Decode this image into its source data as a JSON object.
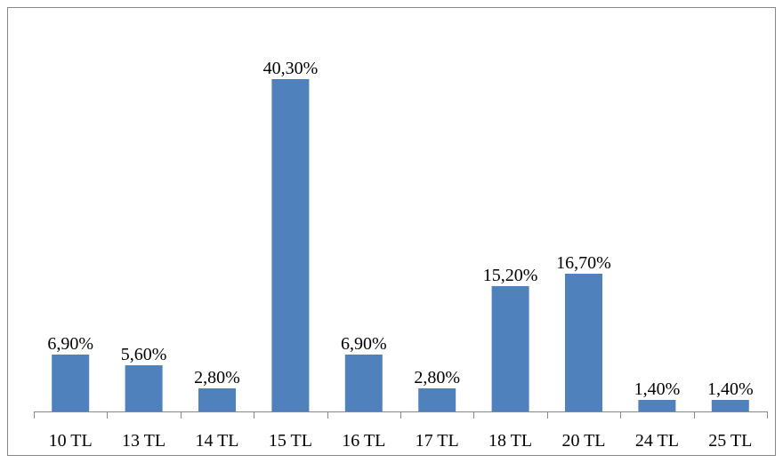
{
  "chart_data": {
    "type": "bar",
    "categories": [
      "10 TL",
      "13 TL",
      "14 TL",
      "15 TL",
      "16 TL",
      "17 TL",
      "18 TL",
      "20 TL",
      "24 TL",
      "25 TL"
    ],
    "values": [
      6.9,
      5.6,
      2.8,
      40.3,
      6.9,
      2.8,
      15.2,
      16.7,
      1.4,
      1.4
    ],
    "value_labels": [
      "6,90%",
      "5,60%",
      "2,80%",
      "40,30%",
      "6,90%",
      "2,80%",
      "15,20%",
      "16,70%",
      "1,40%",
      "1,40%"
    ],
    "color": "#4f81bd"
  }
}
